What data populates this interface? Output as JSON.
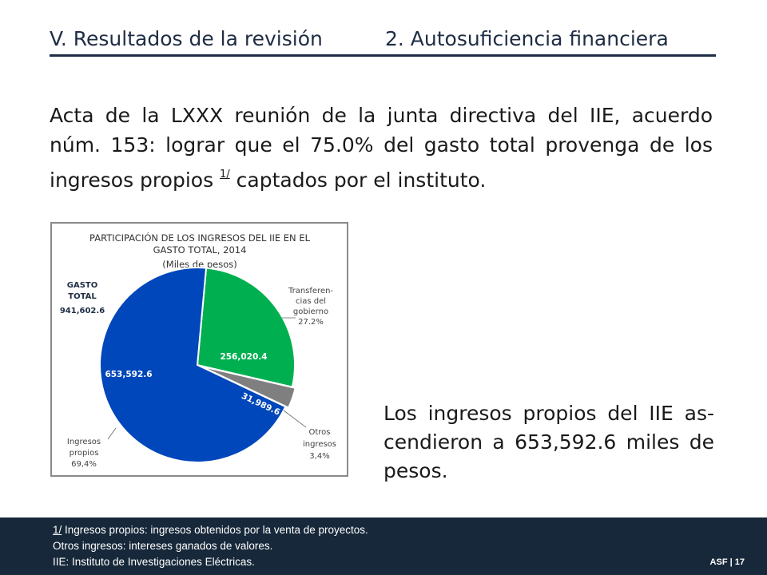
{
  "header": {
    "section": "V. Resultados de la revisión",
    "subsection": "2. Autosuficiencia financiera"
  },
  "intro": {
    "text_before": "Acta de la LXXX reunión de la junta directiva del IIE, acuerdo núm. 153: lograr que el 75.0% del gasto total provenga de los ingresos propios ",
    "footnote_ref": "1/",
    "text_after": " captados por el instituto."
  },
  "chart_data": {
    "type": "pie",
    "title_line1": "PARTICIPACIÓN DE LOS INGRESOS DEL IIE EN EL",
    "title_line2": "GASTO TOTAL, 2014",
    "subtitle": "(Miles de pesos)",
    "total_label_line1": "GASTO",
    "total_label_line2": "TOTAL",
    "total_value": "941,602.6",
    "slices": [
      {
        "key": "transferencias",
        "value": 256020.4,
        "value_label": "256,020.4",
        "percent": 27.2,
        "color": "#00b050",
        "label_lines": [
          "Transferen-",
          "cias del",
          "gobierno",
          "27.2%"
        ]
      },
      {
        "key": "otros",
        "value": 31989.6,
        "value_label": "31,989.6",
        "percent": 3.4,
        "color": "#7f7f7f",
        "label_lines": [
          "Otros",
          "ingresos",
          "3,4%"
        ]
      },
      {
        "key": "propios",
        "value": 653592.6,
        "value_label": "653,592.6",
        "percent": 69.4,
        "color": "#0047bb",
        "label_lines": [
          "Ingresos",
          "propios",
          "69,4%"
        ]
      }
    ]
  },
  "conclusion": {
    "text": "Los ingresos propios del IIE as-cendieron a 653,592.6 miles de pesos."
  },
  "footer": {
    "note1_ref": "1/",
    "note1_text": " Ingresos propios: ingresos obtenidos por la venta de proyectos.",
    "note2": "Otros ingresos: intereses ganados de valores.",
    "note3": "IIE: Instituto de Investigaciones Eléctricas.",
    "org": "ASF",
    "separator": "|",
    "page": "17"
  },
  "colors": {
    "header_text": "#1f2d44",
    "footer_bg": "#17283a"
  }
}
